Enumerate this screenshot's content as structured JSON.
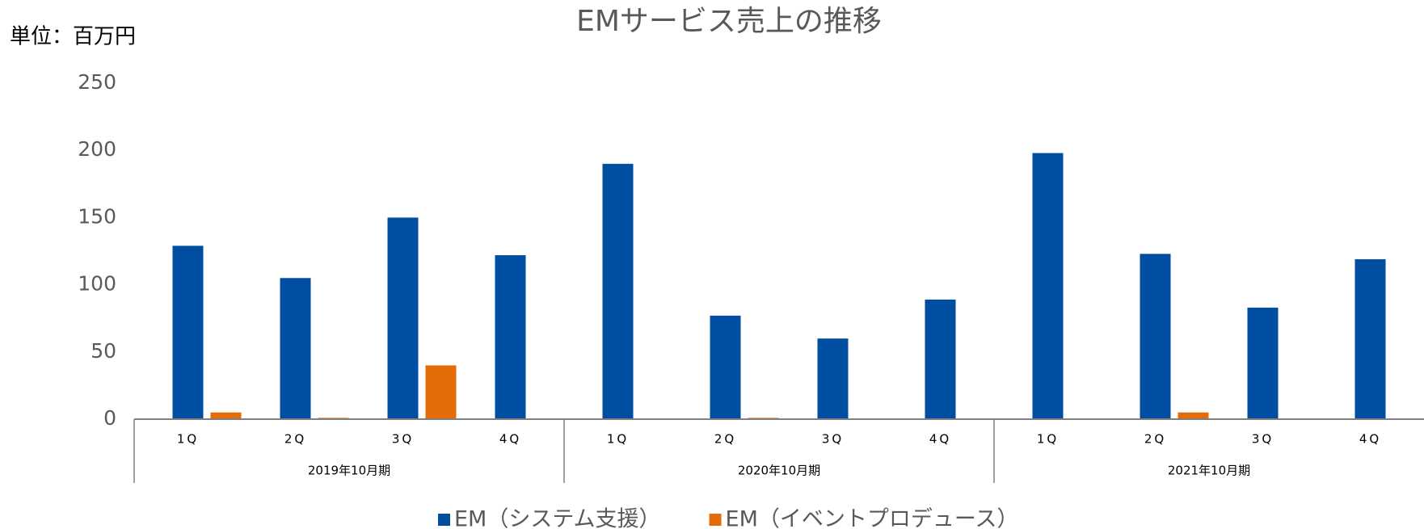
{
  "chart_data": {
    "type": "bar",
    "title": "EMサービス売上の推移",
    "unit_label": "単位：百万円",
    "categories": [
      "1Q",
      "2Q",
      "3Q",
      "4Q",
      "1Q",
      "2Q",
      "3Q",
      "4Q",
      "1Q",
      "2Q",
      "3Q",
      "4Q"
    ],
    "groups": [
      "2019年10月期",
      "2020年10月期",
      "2021年10月期"
    ],
    "series": [
      {
        "name": "EM（システム支援）",
        "color": "#004ea2",
        "values": [
          129,
          105,
          150,
          122,
          190,
          77,
          60,
          89,
          198,
          123,
          83,
          119
        ]
      },
      {
        "name": "EM（イベントプロデュース）",
        "color": "#e36c09",
        "values": [
          5,
          1,
          40,
          0,
          0,
          1,
          0,
          0,
          0,
          5,
          0,
          0
        ]
      }
    ],
    "ylim": [
      0,
      250
    ],
    "yticks": [
      0,
      50,
      100,
      150,
      200,
      250
    ],
    "grid": false
  }
}
